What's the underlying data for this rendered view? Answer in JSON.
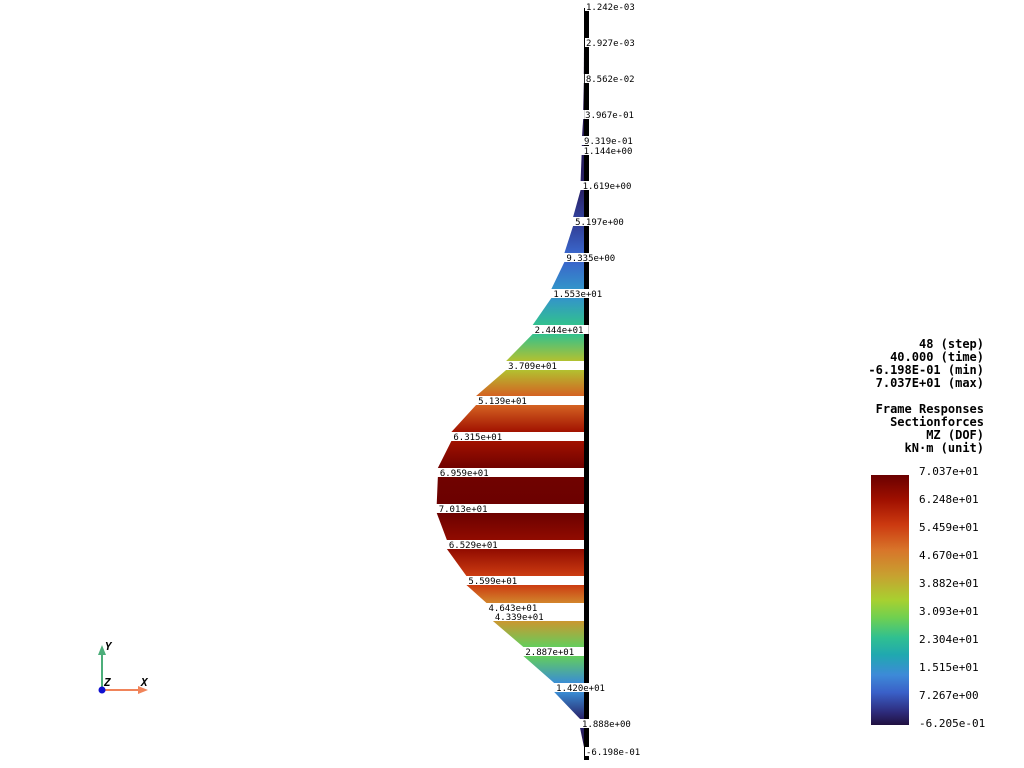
{
  "info": {
    "step": "48 (step)",
    "time": "40.000 (time)",
    "min": "-6.198E-01 (min)",
    "max": "7.037E+01 (max)",
    "title": "Frame Responses",
    "subtitle": "Sectionforces",
    "dof": "MZ (DOF)",
    "unit": "kN·m (unit)"
  },
  "colorbar": {
    "labels": [
      "7.037e+01",
      "6.248e+01",
      "5.459e+01",
      "4.670e+01",
      "3.882e+01",
      "3.093e+01",
      "2.304e+01",
      "1.515e+01",
      "7.267e+00",
      "-6.205e-01"
    ]
  },
  "axes": {
    "x": "X",
    "y": "Y",
    "z": "Z"
  },
  "segments": [
    {
      "label": "1.242e-03",
      "value": 0.001242
    },
    {
      "label": "2.927e-03",
      "value": 0.002927
    },
    {
      "label": "8.562e-02",
      "value": 0.08562
    },
    {
      "label": "3.967e-01",
      "value": 0.3967
    },
    {
      "label": "9.319e-01",
      "value": 0.9319
    },
    {
      "label": "1.144e+00",
      "value": 1.144
    },
    {
      "label": "1.619e+00",
      "value": 1.619
    },
    {
      "label": "5.197e+00",
      "value": 5.197
    },
    {
      "label": "9.335e+00",
      "value": 9.335
    },
    {
      "label": "1.553e+01",
      "value": 15.53
    },
    {
      "label": "2.444e+01",
      "value": 24.44
    },
    {
      "label": "3.709e+01",
      "value": 37.09
    },
    {
      "label": "5.139e+01",
      "value": 51.39
    },
    {
      "label": "6.315e+01",
      "value": 63.15
    },
    {
      "label": "6.959e+01",
      "value": 69.59
    },
    {
      "label": "7.013e+01",
      "value": 70.13
    },
    {
      "label": "6.529e+01",
      "value": 65.29
    },
    {
      "label": "5.599e+01",
      "value": 55.99
    },
    {
      "label": "4.643e+01",
      "value": 46.43
    },
    {
      "label": "4.339e+01",
      "value": 43.39
    },
    {
      "label": "2.887e+01",
      "value": 28.87
    },
    {
      "label": "1.420e+01",
      "value": 14.2
    },
    {
      "label": "1.888e+00",
      "value": 1.888
    },
    {
      "label": "-6.198e-01",
      "value": -0.6198
    }
  ],
  "range": {
    "min": -0.6205,
    "max": 70.37
  }
}
